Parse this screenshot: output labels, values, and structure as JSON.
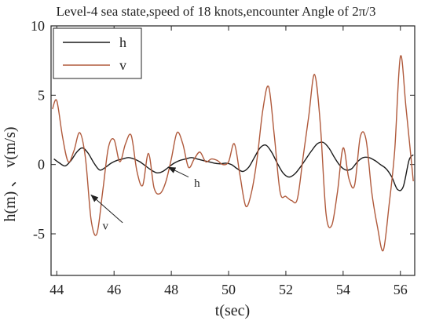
{
  "chart_data": {
    "type": "line",
    "title": "Level-4 sea state,speed of 18 knots,encounter Angle of 2π/3",
    "xlabel": "t(sec)",
    "ylabel": "h(m) 、 v(m/s)",
    "xlim": [
      43.8,
      56.5
    ],
    "ylim": [
      -8,
      10
    ],
    "xticks": [
      44,
      46,
      48,
      50,
      52,
      54,
      56
    ],
    "yticks": [
      -5,
      0,
      5,
      10
    ],
    "legend_position": "top-left",
    "series": [
      {
        "name": "h",
        "color": "#1a1a1a",
        "x": [
          43.9,
          44.1,
          44.3,
          44.5,
          44.7,
          44.9,
          45.1,
          45.3,
          45.5,
          45.7,
          45.9,
          46.1,
          46.3,
          46.5,
          46.7,
          46.9,
          47.1,
          47.3,
          47.5,
          47.7,
          47.9,
          48.1,
          48.3,
          48.5,
          48.7,
          48.9,
          49.1,
          49.3,
          49.5,
          49.7,
          49.9,
          50.1,
          50.3,
          50.5,
          50.7,
          50.9,
          51.1,
          51.3,
          51.5,
          51.7,
          51.9,
          52.1,
          52.3,
          52.5,
          52.7,
          52.9,
          53.1,
          53.3,
          53.5,
          53.7,
          53.9,
          54.1,
          54.3,
          54.5,
          54.7,
          54.9,
          55.1,
          55.3,
          55.5,
          55.7,
          55.9,
          56.1,
          56.3,
          56.45
        ],
        "values": [
          0.4,
          0.1,
          -0.1,
          0.3,
          0.9,
          1.2,
          0.8,
          0.1,
          -0.4,
          -0.2,
          0.1,
          0.3,
          0.4,
          0.5,
          0.4,
          0.2,
          -0.1,
          -0.4,
          -0.6,
          -0.5,
          -0.2,
          0.1,
          0.3,
          0.4,
          0.5,
          0.4,
          0.3,
          0.2,
          0.1,
          0.05,
          0.1,
          0.0,
          -0.3,
          -0.5,
          -0.2,
          0.5,
          1.2,
          1.4,
          0.9,
          0.1,
          -0.6,
          -0.9,
          -0.7,
          -0.2,
          0.4,
          1.0,
          1.5,
          1.6,
          1.2,
          0.5,
          -0.1,
          -0.4,
          -0.3,
          0.2,
          0.5,
          0.5,
          0.3,
          0.0,
          -0.3,
          -0.9,
          -1.8,
          -1.6,
          0.3,
          0.7
        ]
      },
      {
        "name": "v",
        "color": "#b05a3c",
        "x": [
          43.85,
          44.0,
          44.2,
          44.4,
          44.6,
          44.8,
          45.0,
          45.2,
          45.4,
          45.6,
          45.8,
          46.0,
          46.2,
          46.4,
          46.6,
          46.8,
          47.0,
          47.2,
          47.4,
          47.6,
          47.8,
          48.0,
          48.2,
          48.4,
          48.6,
          48.8,
          49.0,
          49.2,
          49.4,
          49.6,
          49.8,
          50.0,
          50.2,
          50.4,
          50.6,
          50.8,
          51.0,
          51.2,
          51.4,
          51.6,
          51.8,
          52.0,
          52.2,
          52.4,
          52.6,
          52.8,
          53.0,
          53.2,
          53.4,
          53.6,
          53.8,
          54.0,
          54.2,
          54.4,
          54.6,
          54.8,
          55.0,
          55.2,
          55.4,
          55.6,
          55.8,
          56.0,
          56.2,
          56.45
        ],
        "values": [
          4.0,
          4.6,
          2.0,
          0.2,
          1.0,
          2.3,
          0.5,
          -4.0,
          -5.0,
          -2.0,
          1.2,
          1.8,
          0.2,
          1.5,
          2.1,
          -0.5,
          -1.5,
          0.8,
          -1.7,
          -2.1,
          -1.3,
          0.4,
          2.3,
          1.5,
          -0.2,
          0.4,
          0.9,
          0.2,
          0.4,
          0.3,
          0.0,
          0.2,
          1.5,
          -0.8,
          -3.0,
          -2.0,
          0.5,
          4.0,
          5.6,
          2.0,
          -2.0,
          -2.3,
          -2.6,
          -2.5,
          0.5,
          3.5,
          6.5,
          3.0,
          -3.5,
          -4.4,
          -2.0,
          1.2,
          -1.0,
          -1.5,
          2.0,
          1.8,
          -2.0,
          -4.5,
          -6.2,
          -3.0,
          1.0,
          7.8,
          4.0,
          -1.2
        ]
      }
    ],
    "annotations": [
      {
        "text": "h",
        "x": 48.9,
        "y": -1.6,
        "arrow_from": [
          48.6,
          -0.9
        ],
        "arrow_to": [
          47.9,
          -0.2
        ]
      },
      {
        "text": "v",
        "x": 45.7,
        "y": -4.7,
        "arrow_from": [
          46.3,
          -4.2
        ],
        "arrow_to": [
          45.2,
          -2.2
        ]
      }
    ]
  }
}
